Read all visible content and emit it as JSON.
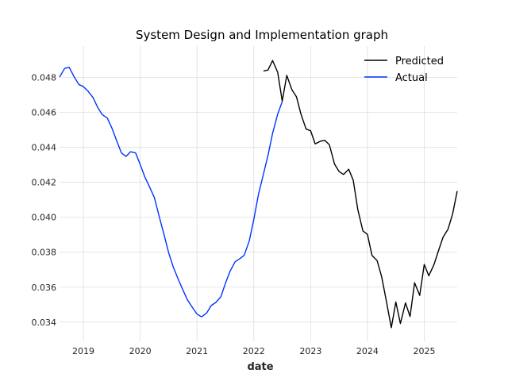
{
  "chart_data": {
    "type": "line",
    "title": "System Design and Implementation graph",
    "xlabel": "date",
    "ylabel": "",
    "xlim": [
      2018.58,
      2025.58
    ],
    "ylim": [
      0.0329,
      0.0498
    ],
    "x_ticks": [
      2019,
      2020,
      2021,
      2022,
      2023,
      2024,
      2025
    ],
    "x_tick_labels": [
      "2019",
      "2020",
      "2021",
      "2022",
      "2023",
      "2024",
      "2025"
    ],
    "y_ticks": [
      0.034,
      0.036,
      0.038,
      0.04,
      0.042,
      0.044,
      0.046,
      0.048
    ],
    "y_tick_labels": [
      "0.034",
      "0.036",
      "0.038",
      "0.040",
      "0.042",
      "0.044",
      "0.046",
      "0.048"
    ],
    "grid": true,
    "legend_position": "top-right",
    "series": [
      {
        "name": "Predicted",
        "color": "#000000",
        "x": [
          2022.17,
          2022.25,
          2022.33,
          2022.42,
          2022.5,
          2022.58,
          2022.67,
          2022.75,
          2022.83,
          2022.92,
          2023.0,
          2023.08,
          2023.17,
          2023.25,
          2023.33,
          2023.42,
          2023.5,
          2023.58,
          2023.67,
          2023.75,
          2023.83,
          2023.92,
          2024.0,
          2024.08,
          2024.17,
          2024.25,
          2024.33,
          2024.42,
          2024.5,
          2024.58,
          2024.67,
          2024.75,
          2024.83,
          2024.92,
          2025.0,
          2025.08,
          2025.17,
          2025.25,
          2025.33,
          2025.42,
          2025.5,
          2025.58
        ],
        "values": [
          0.04837,
          0.04843,
          0.04897,
          0.0483,
          0.04665,
          0.04812,
          0.0473,
          0.0469,
          0.0459,
          0.04505,
          0.04495,
          0.0442,
          0.04435,
          0.0444,
          0.04415,
          0.04305,
          0.04262,
          0.04245,
          0.04275,
          0.04212,
          0.04045,
          0.03922,
          0.03902,
          0.03782,
          0.03752,
          0.0366,
          0.03525,
          0.03368,
          0.03515,
          0.03392,
          0.0351,
          0.03432,
          0.03625,
          0.03553,
          0.0373,
          0.03665,
          0.03728,
          0.03808,
          0.03885,
          0.03933,
          0.0402,
          0.0415
        ]
      },
      {
        "name": "Actual",
        "color": "#0033ff",
        "x": [
          2018.58,
          2018.67,
          2018.75,
          2018.83,
          2018.92,
          2019.0,
          2019.08,
          2019.17,
          2019.25,
          2019.33,
          2019.42,
          2019.5,
          2019.58,
          2019.67,
          2019.75,
          2019.83,
          2019.92,
          2020.0,
          2020.08,
          2020.17,
          2020.25,
          2020.33,
          2020.42,
          2020.5,
          2020.58,
          2020.67,
          2020.75,
          2020.83,
          2020.92,
          2021.0,
          2021.08,
          2021.17,
          2021.25,
          2021.33,
          2021.42,
          2021.5,
          2021.58,
          2021.67,
          2021.75,
          2021.83,
          2021.92,
          2022.0,
          2022.08,
          2022.17,
          2022.25,
          2022.33,
          2022.42,
          2022.5
        ],
        "values": [
          0.04802,
          0.04852,
          0.04858,
          0.04808,
          0.0476,
          0.04748,
          0.04722,
          0.04685,
          0.0463,
          0.04588,
          0.04568,
          0.04512,
          0.04443,
          0.04368,
          0.04348,
          0.04375,
          0.04368,
          0.04302,
          0.04232,
          0.0417,
          0.04112,
          0.0401,
          0.039,
          0.03798,
          0.03717,
          0.03645,
          0.03585,
          0.03528,
          0.03483,
          0.03446,
          0.0343,
          0.03452,
          0.03495,
          0.03512,
          0.03545,
          0.03622,
          0.0369,
          0.03745,
          0.03762,
          0.03782,
          0.03865,
          0.03988,
          0.04128,
          0.04248,
          0.04355,
          0.0448,
          0.0459,
          0.04662
        ]
      }
    ]
  }
}
